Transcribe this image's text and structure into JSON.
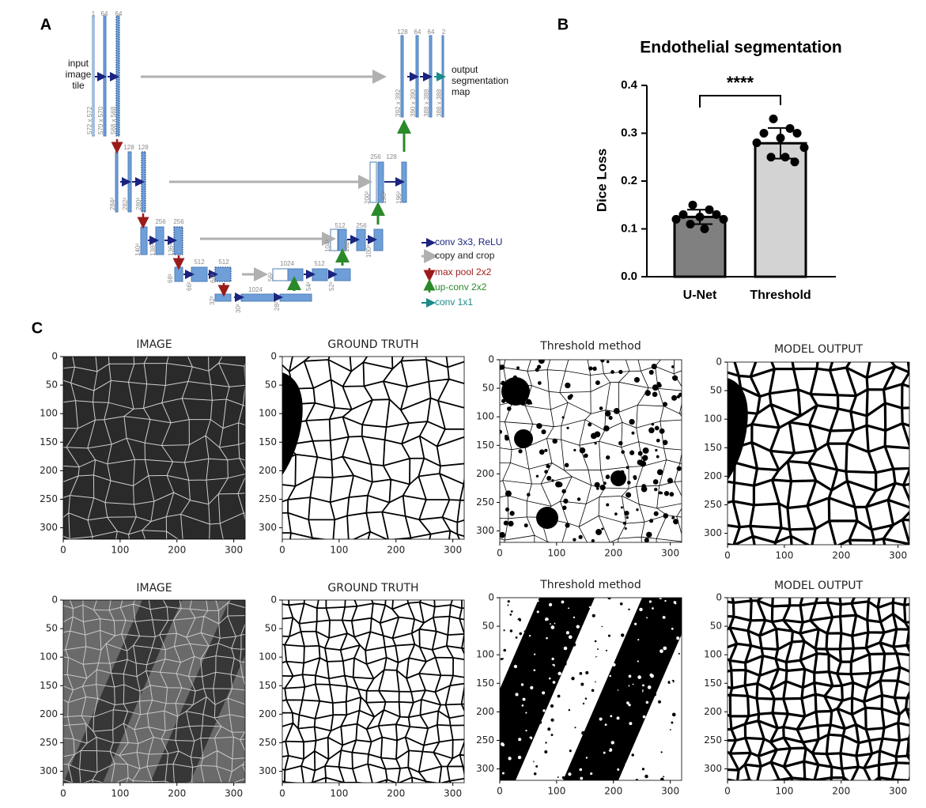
{
  "panel_labels": [
    "A",
    "B",
    "C"
  ],
  "unet": {
    "input_label": "input image tile",
    "output_label": "output segmentation map",
    "channels": [
      "1",
      "64",
      "64",
      "128",
      "64",
      "64",
      "2",
      "128",
      "128",
      "256",
      "128",
      "256",
      "256",
      "512",
      "256",
      "512",
      "512",
      "1024",
      "512",
      "1024"
    ],
    "sizes": [
      "572 x 572",
      "570 x 570",
      "568 x 568",
      "392 x 392",
      "390 x 390",
      "388 x 388",
      "388 x 388",
      "284²",
      "282²",
      "280²",
      "200²",
      "198²",
      "196²",
      "140²",
      "138²",
      "136²",
      "104²",
      "102²",
      "100²",
      "68²",
      "66²",
      "64²",
      "56²",
      "54²",
      "52²",
      "32²",
      "30²",
      "28²"
    ],
    "legend": [
      "conv 3x3, ReLU",
      "copy and crop",
      "max pool 2x2",
      "up-conv 2x2",
      "conv 1x1"
    ]
  },
  "chart_data": {
    "type": "bar",
    "title": "Endothelial segmentation",
    "ylabel": "Dice Loss",
    "categories": [
      "U-Net",
      "Threshold"
    ],
    "values": [
      0.125,
      0.279
    ],
    "errors": [
      0.015,
      0.032
    ],
    "colors": [
      "#808080",
      "#d3d3d3"
    ],
    "points": [
      [
        0.15,
        0.14,
        0.13,
        0.13,
        0.125,
        0.12,
        0.12,
        0.11,
        0.1
      ],
      [
        0.33,
        0.31,
        0.3,
        0.3,
        0.29,
        0.28,
        0.27,
        0.25,
        0.25,
        0.24
      ]
    ],
    "annotation": "****",
    "ylim": [
      0,
      0.4
    ],
    "yticks": [
      {
        "value": 0,
        "label": "0.0"
      },
      0.1,
      0.2,
      0.3,
      0.4
    ]
  },
  "figure_c": {
    "rows": [
      [
        "IMAGE",
        "GROUND TRUTH",
        "Threshold method",
        "MODEL OUTPUT"
      ],
      [
        "IMAGE",
        "GROUND TRUTH",
        "Threshold method",
        "MODEL OUTPUT"
      ]
    ],
    "xlim": [
      0,
      320
    ],
    "ylim": [
      0,
      320
    ],
    "xticks": [
      0,
      100,
      200,
      300
    ],
    "yticks": [
      0,
      50,
      100,
      150,
      200,
      250,
      300
    ]
  }
}
